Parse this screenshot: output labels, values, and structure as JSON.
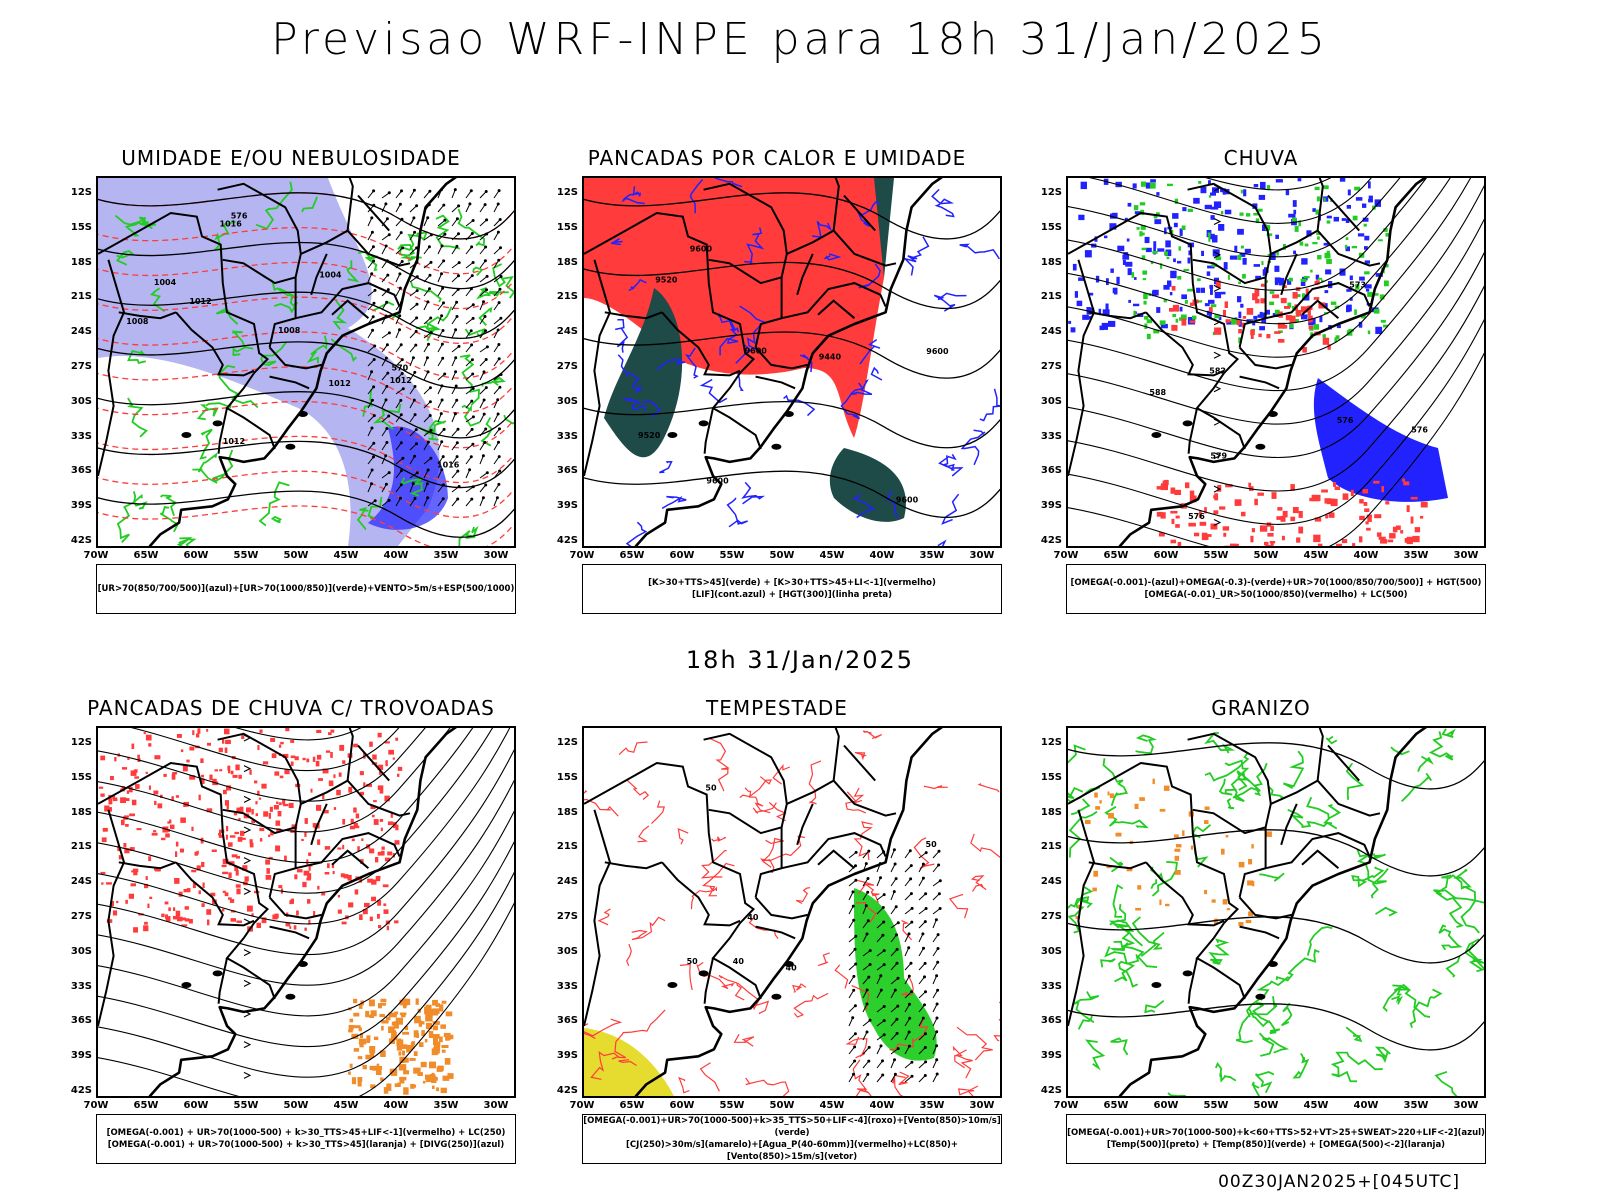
{
  "header": {
    "title": "Previsao WRF-INPE  para 18h 31/Jan/2025"
  },
  "mid_title": "18h 31/Jan/2025",
  "footer": "00Z30JAN2025+[045UTC]",
  "axes": {
    "lat_labels": [
      "12S",
      "15S",
      "18S",
      "21S",
      "24S",
      "27S",
      "30S",
      "33S",
      "36S",
      "39S",
      "42S"
    ],
    "lon_labels": [
      "70W",
      "65W",
      "60W",
      "55W",
      "50W",
      "45W",
      "40W",
      "35W",
      "30W"
    ]
  },
  "colors": {
    "red": "#ff3b3b",
    "green": "#22cc22",
    "blue": "#2222ff",
    "lavender": "#a8a8f0",
    "darkteal": "#1e4a48",
    "orange": "#f08c2a",
    "yellow": "#e6dc30"
  },
  "panels": [
    {
      "id": "umidade",
      "title": "UMIDADE E/OU NEBULOSIDADE",
      "legend": [
        "[UR>70(850/700/500)](azul)+[UR>70(1000/850)](verde)+VENTO>5m/s+ESP(500/1000)"
      ],
      "labels": [
        "1012",
        "1004",
        "1008",
        "1016",
        "1012",
        "1004",
        "1008",
        "1012",
        "1016",
        "1012",
        "576",
        "570"
      ]
    },
    {
      "id": "pancadas-calor",
      "title": "PANCADAS POR CALOR E UMIDADE",
      "legend": [
        "[K>30+TTS>45](verde) + [K>30+TTS>45+LI<-1](vermelho)",
        "[LIF](cont.azul) + [HGT(300)](linha preta)"
      ],
      "labels": [
        "9600",
        "9600",
        "9600",
        "9600",
        "9520",
        "9520",
        "9440",
        "9600"
      ]
    },
    {
      "id": "chuva",
      "title": "CHUVA",
      "legend": [
        "[OMEGA(-0.001)-(azul)+OMEGA(-0.3)-(verde)+UR>70(1000/850/700/500)] + HGT(500)",
        "[OMEGA(-0.01)_UR>50(1000/850)(vermelho) + LC(500)"
      ],
      "labels": [
        "576",
        "576",
        "582",
        "579",
        "576",
        "573",
        "588"
      ]
    },
    {
      "id": "trovoadas",
      "title": "PANCADAS DE CHUVA C/ TROVOADAS",
      "legend": [
        "[OMEGA(-0.001) + UR>70(1000-500) + k>30_TTS>45+LIF<-1](vermelho) + LC(250)",
        "[OMEGA(-0.001) + UR>70(1000-500) + k>30_TTS>45](laranja) + [DIVG(250)](azul)"
      ],
      "labels": []
    },
    {
      "id": "tempestade",
      "title": "TEMPESTADE",
      "legend": [
        "[OMEGA(-0.001)+UR>70(1000-500)+k>35_TTS>50+LIF<-4](roxo)+[Vento(850)>10m/s](verde)",
        "[CJ(250)>30m/s](amarelo)+[Agua_P(40-60mm)](vermelho)+LC(850)+[Vento(850)>15m/s](vetor)"
      ],
      "labels": [
        "40",
        "50",
        "50",
        "40",
        "40",
        "50"
      ]
    },
    {
      "id": "granizo",
      "title": "GRANIZO",
      "legend": [
        "[OMEGA(-0.001)+UR>70(1000-500)+k<60+TTS>52+VT>25+SWEAT>220+LIF<-2](azul)",
        "[Temp(500)](preto) + [Temp(850)](verde) + [OMEGA(500)<-2](laranja)"
      ],
      "labels": []
    }
  ]
}
